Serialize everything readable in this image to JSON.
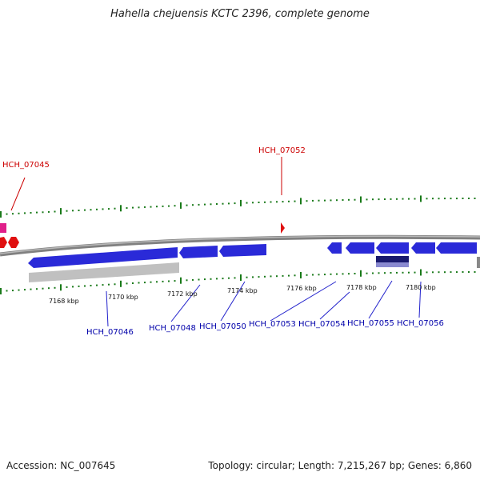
{
  "title": "Hahella chejuensis KCTC 2396, complete genome",
  "footer": {
    "accession": "Accession: NC_007645",
    "summary": "Topology: circular; Length: 7,215,267 bp; Genes: 6,860"
  },
  "colors": {
    "forward_gene": "#2a2ad8",
    "reverse_gene": "#e01010",
    "rna_gene": "#e0208a",
    "backbone": "#808080",
    "ticks": "#1a7a1a",
    "label_forward": "#cc0000",
    "label_reverse": "#0000aa",
    "leader_forward": "#cc0000",
    "leader_reverse": "#2222cc",
    "cds_bar": "#c0c0c0",
    "domain_dark": "#1a1a6e",
    "domain_light": "#8a8ad0"
  },
  "kbp_ticks": [
    "7168 kbp",
    "7170 kbp",
    "7172 kbp",
    "7174 kbp",
    "7176 kbp",
    "7178 kbp",
    "7180 kbp"
  ],
  "labels_top": [
    "HCH_07045",
    "HCH_07052"
  ],
  "labels_bottom": [
    "HCH_07046",
    "HCH_07048",
    "HCH_07050",
    "HCH_07053",
    "HCH_07054",
    "HCH_07055",
    "HCH_07056"
  ]
}
